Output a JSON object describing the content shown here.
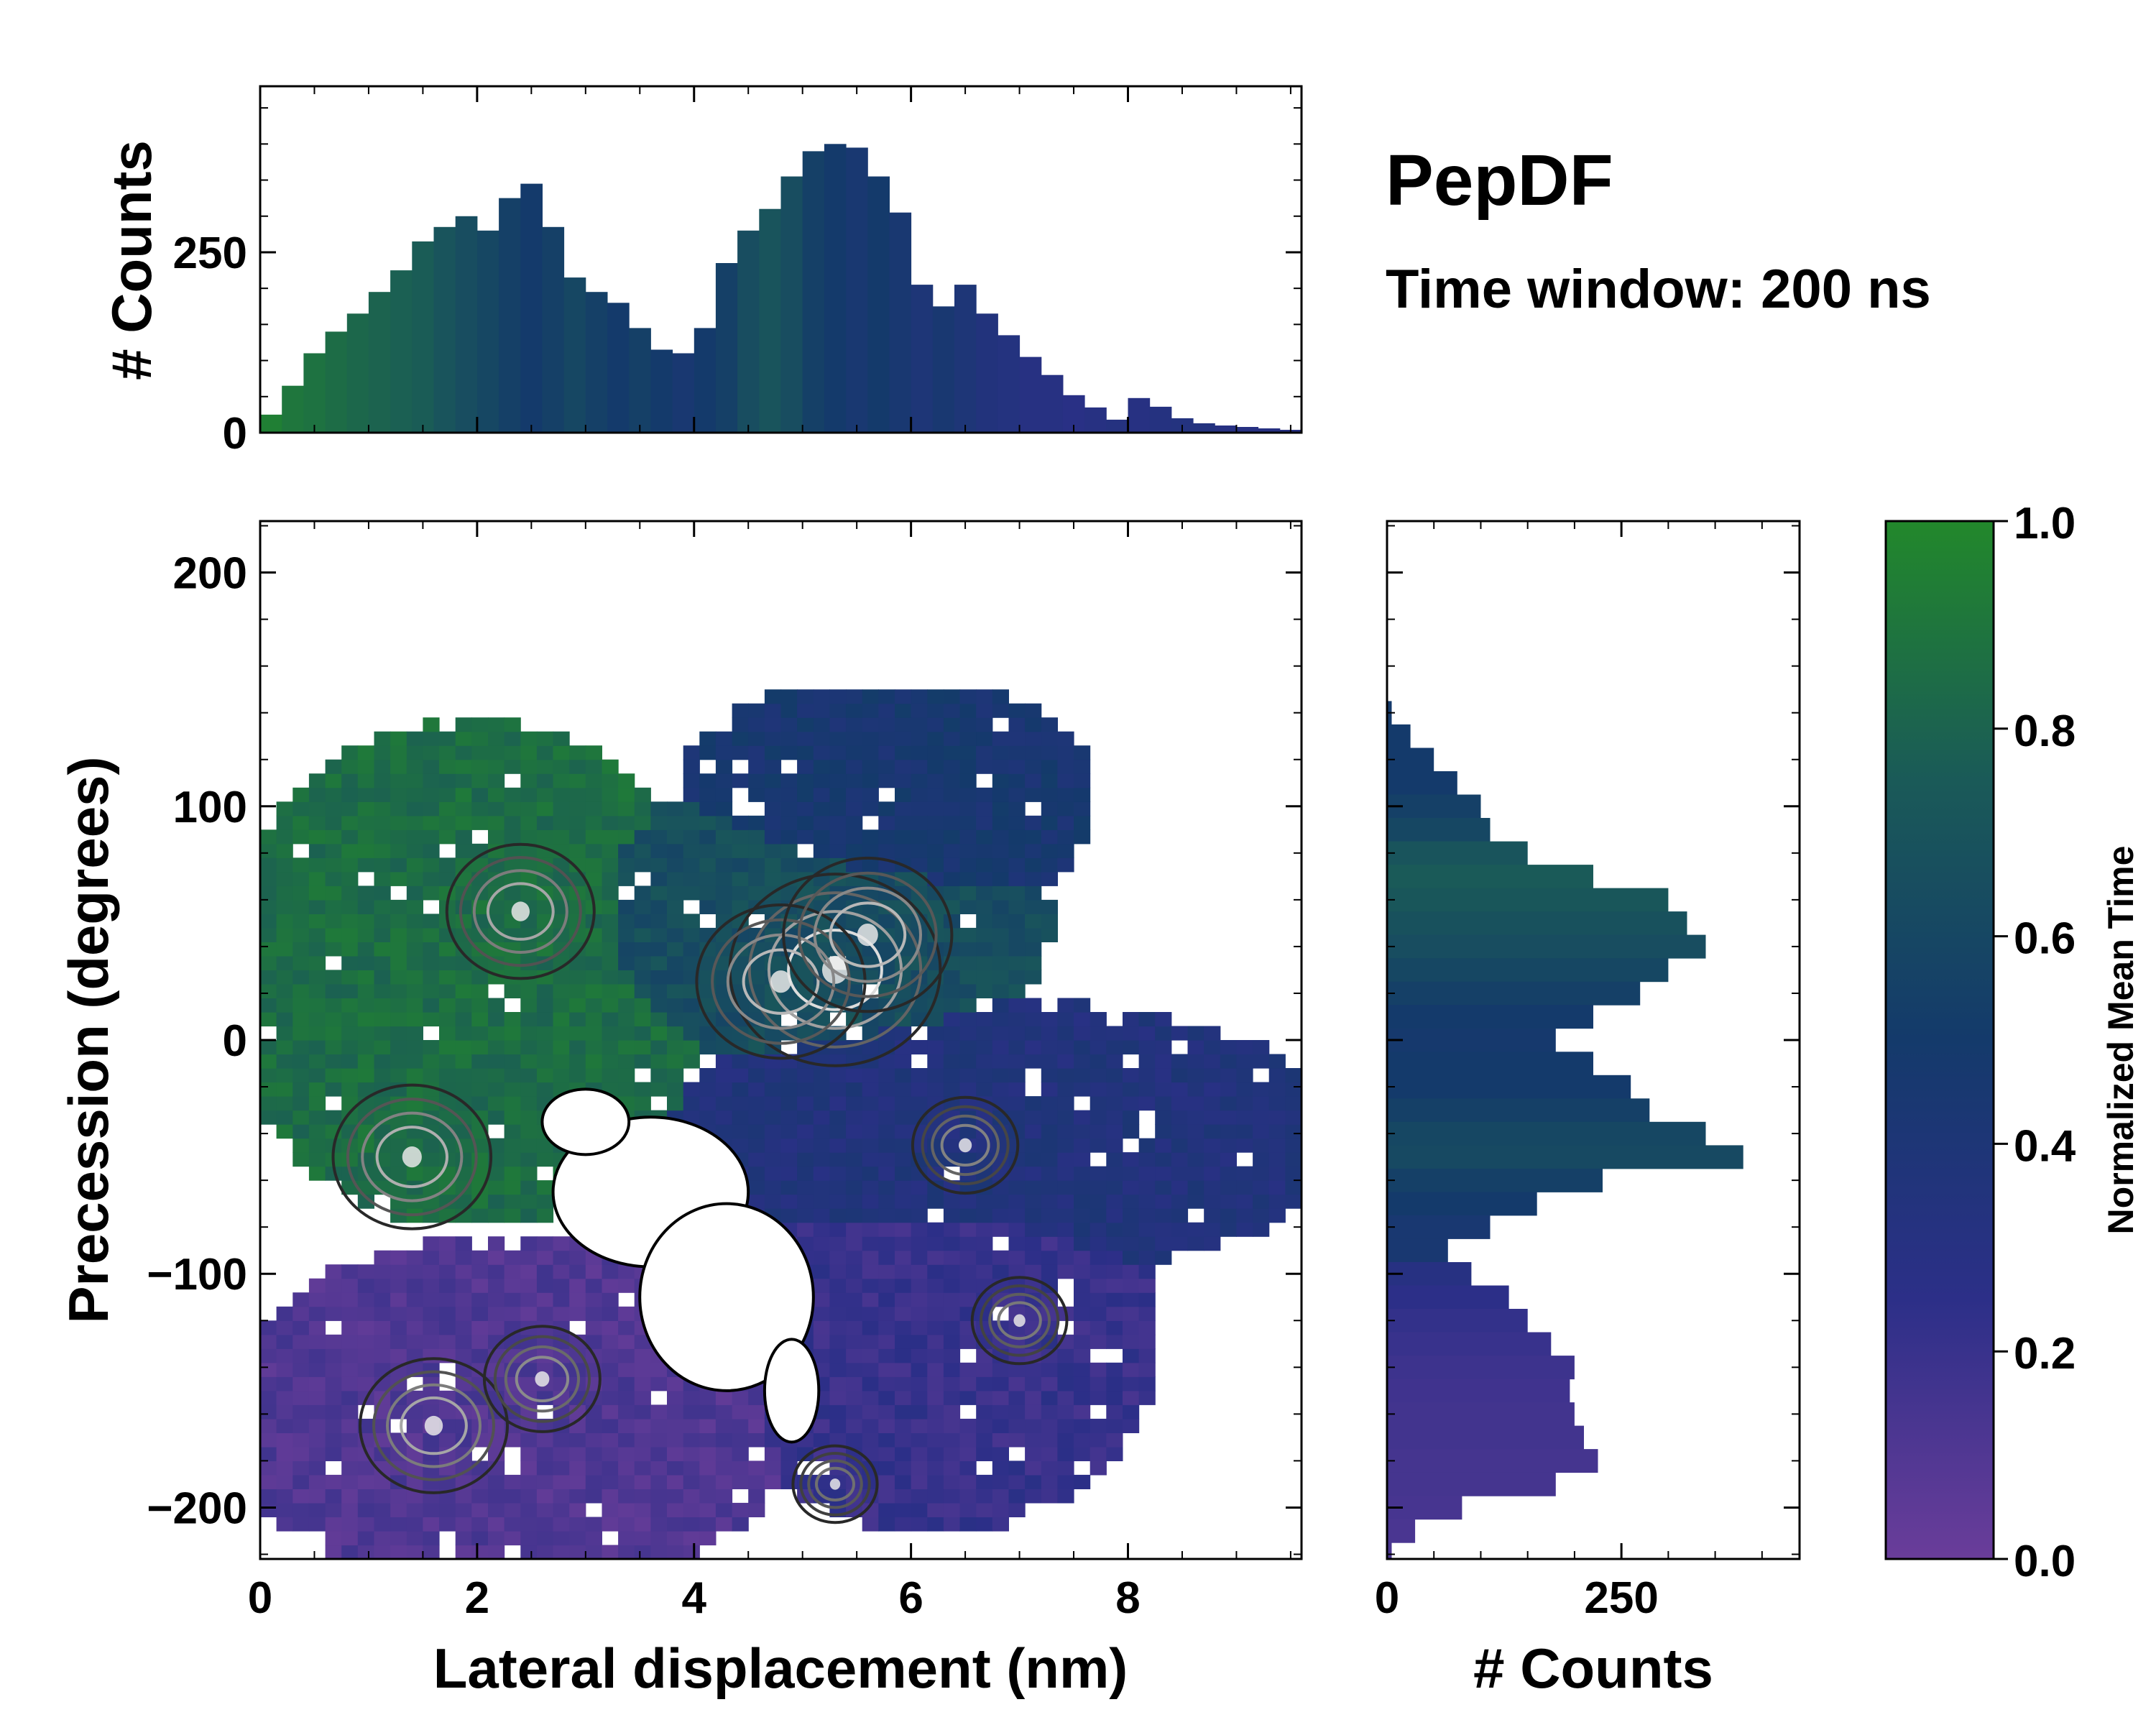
{
  "chart_data": [
    {
      "id": "main",
      "type": "heatmap",
      "xlabel": "Lateral displacement (nm)",
      "ylabel": "Precession (degrees)",
      "xlim": [
        0,
        9.6
      ],
      "ylim": [
        -222,
        222
      ],
      "xticks": [
        0,
        2,
        4,
        6,
        8
      ],
      "yticks": [
        -200,
        -100,
        0,
        100,
        200
      ],
      "xtick_labels": [
        "0",
        "2",
        "4",
        "6",
        "8"
      ],
      "ytick_labels": [
        "−200",
        "−100",
        "0",
        "100",
        "200"
      ],
      "colorbar_label": "Normalized Mean Time",
      "regions": [
        {
          "name": "green cluster upper-left",
          "x": [
            0,
            3.8
          ],
          "y": [
            -70,
            120
          ],
          "mean_time": 0.85
        },
        {
          "name": "green-teal center",
          "x": [
            2.5,
            6.8
          ],
          "y": [
            0,
            90
          ],
          "mean_time": 0.65
        },
        {
          "name": "blue upper-right",
          "x": [
            4.2,
            7.2
          ],
          "y": [
            60,
            140
          ],
          "mean_time": 0.45
        },
        {
          "name": "blue right arm",
          "x": [
            4,
            9.5
          ],
          "y": [
            -90,
            0
          ],
          "mean_time": 0.35
        },
        {
          "name": "purple lower-left",
          "x": [
            0,
            4.5
          ],
          "y": [
            -225,
            -100
          ],
          "mean_time": 0.1
        },
        {
          "name": "purple lower-right",
          "x": [
            4.5,
            7.8
          ],
          "y": [
            -200,
            -60
          ],
          "mean_time": 0.2
        }
      ],
      "density_peaks": [
        {
          "x": 5.3,
          "y": 30,
          "strength": 1.0
        },
        {
          "x": 4.8,
          "y": 25,
          "strength": 0.8
        },
        {
          "x": 5.6,
          "y": 45,
          "strength": 0.8
        },
        {
          "x": 2.4,
          "y": 55,
          "strength": 0.7
        },
        {
          "x": 1.4,
          "y": -50,
          "strength": 0.75
        },
        {
          "x": 1.6,
          "y": -165,
          "strength": 0.7
        },
        {
          "x": 2.6,
          "y": -145,
          "strength": 0.55
        },
        {
          "x": 6.5,
          "y": -45,
          "strength": 0.5
        },
        {
          "x": 7.0,
          "y": -120,
          "strength": 0.45
        },
        {
          "x": 5.3,
          "y": -190,
          "strength": 0.4
        }
      ]
    },
    {
      "id": "top-marginal",
      "type": "bar",
      "xlabel": "",
      "ylabel": "# Counts",
      "xlim": [
        0,
        9.6
      ],
      "ylim": [
        0,
        480
      ],
      "yticks": [
        0,
        250
      ],
      "bin_width": 0.05,
      "x": [
        0.1,
        0.3,
        0.5,
        0.7,
        0.9,
        1.1,
        1.3,
        1.5,
        1.7,
        1.9,
        2.1,
        2.3,
        2.5,
        2.7,
        2.9,
        3.1,
        3.3,
        3.5,
        3.7,
        3.9,
        4.1,
        4.3,
        4.5,
        4.7,
        4.9,
        5.1,
        5.3,
        5.5,
        5.7,
        5.9,
        6.1,
        6.3,
        6.5,
        6.7,
        6.9,
        7.1,
        7.3,
        7.5,
        7.7,
        7.9,
        8.1,
        8.3,
        8.5,
        8.7,
        8.9,
        9.1,
        9.3,
        9.5
      ],
      "values": [
        25,
        65,
        110,
        140,
        165,
        195,
        225,
        265,
        285,
        300,
        280,
        325,
        345,
        285,
        215,
        195,
        180,
        145,
        115,
        110,
        145,
        235,
        280,
        310,
        355,
        390,
        400,
        395,
        355,
        305,
        205,
        175,
        205,
        165,
        135,
        105,
        80,
        52,
        35,
        18,
        48,
        36,
        20,
        13,
        10,
        8,
        6,
        4
      ],
      "mean_time": [
        0.95,
        0.9,
        0.88,
        0.85,
        0.82,
        0.8,
        0.78,
        0.76,
        0.7,
        0.65,
        0.6,
        0.55,
        0.5,
        0.55,
        0.6,
        0.55,
        0.5,
        0.55,
        0.5,
        0.45,
        0.5,
        0.55,
        0.65,
        0.7,
        0.65,
        0.55,
        0.5,
        0.45,
        0.5,
        0.45,
        0.4,
        0.45,
        0.4,
        0.35,
        0.33,
        0.3,
        0.3,
        0.28,
        0.3,
        0.32,
        0.3,
        0.32,
        0.33,
        0.33,
        0.3,
        0.3,
        0.3,
        0.3
      ]
    },
    {
      "id": "right-marginal",
      "type": "bar",
      "orientation": "horizontal",
      "xlabel": "# Counts",
      "ylabel": "",
      "xlim": [
        0,
        440
      ],
      "xticks": [
        0,
        250
      ],
      "ylim": [
        -222,
        222
      ],
      "bin_width": 2.5,
      "y": [
        140,
        130,
        120,
        110,
        100,
        90,
        80,
        70,
        60,
        50,
        40,
        30,
        20,
        10,
        0,
        -10,
        -20,
        -30,
        -40,
        -50,
        -60,
        -70,
        -80,
        -90,
        -100,
        -110,
        -120,
        -130,
        -140,
        -150,
        -160,
        -170,
        -180,
        -190,
        -200,
        -210,
        -220
      ],
      "values": [
        5,
        25,
        50,
        75,
        100,
        110,
        150,
        220,
        300,
        320,
        340,
        300,
        270,
        220,
        180,
        220,
        260,
        280,
        340,
        380,
        230,
        160,
        110,
        65,
        90,
        130,
        150,
        175,
        200,
        195,
        200,
        210,
        225,
        180,
        80,
        30,
        5
      ],
      "mean_time": [
        0.5,
        0.5,
        0.5,
        0.5,
        0.55,
        0.6,
        0.7,
        0.75,
        0.72,
        0.68,
        0.65,
        0.6,
        0.55,
        0.5,
        0.48,
        0.5,
        0.5,
        0.55,
        0.6,
        0.62,
        0.55,
        0.5,
        0.45,
        0.45,
        0.3,
        0.25,
        0.22,
        0.2,
        0.18,
        0.17,
        0.16,
        0.16,
        0.15,
        0.15,
        0.14,
        0.13,
        0.13
      ]
    },
    {
      "id": "colorbar",
      "type": "heatmap",
      "label": "Normalized Mean Time",
      "ylim": [
        0,
        1
      ],
      "ticks": [
        0,
        0.2,
        0.4,
        0.6,
        0.8,
        1.0
      ],
      "tick_labels": [
        "0.0",
        "0.2",
        "0.4",
        "0.6",
        "0.8",
        "1.0"
      ],
      "colormap": [
        "#6a3d9a",
        "#2c2f88",
        "#143a6b",
        "#1a5a58",
        "#22882b"
      ]
    }
  ],
  "title": "PepDF",
  "subtitle": "Time window: 200 ns",
  "colors": {
    "low": "#6a3d9a",
    "mid_low": "#2c2f88",
    "mid": "#143a6b",
    "mid_high": "#1a5a58",
    "high": "#22882b"
  }
}
